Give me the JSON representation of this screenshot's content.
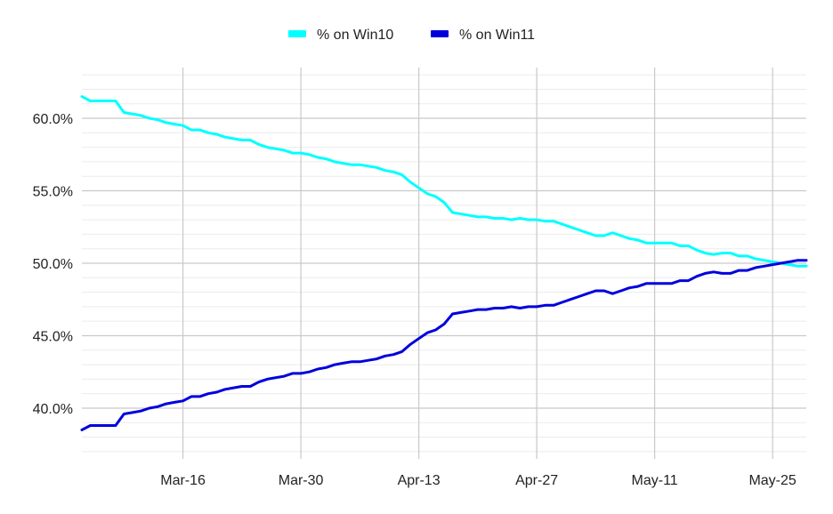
{
  "chart_data": {
    "type": "line",
    "title": "",
    "xlabel": "",
    "ylabel": "",
    "ylim": [
      36.5,
      63.5
    ],
    "yticks": [
      40,
      45,
      50,
      55,
      60
    ],
    "ytick_labels": [
      "40.0%",
      "45.0%",
      "50.0%",
      "55.0%",
      "60.0%"
    ],
    "xlim": [
      "2025-03-04",
      "2025-05-29"
    ],
    "xticks": [
      "2025-03-16",
      "2025-03-30",
      "2025-04-13",
      "2025-04-27",
      "2025-05-11",
      "2025-05-25"
    ],
    "xtick_labels": [
      "Mar-16",
      "Mar-30",
      "Apr-13",
      "Apr-27",
      "May-11",
      "May-25"
    ],
    "grid": true,
    "legend_position": "top-center",
    "series": [
      {
        "name": "% on Win10",
        "color": "#00ffff",
        "points": [
          [
            "2025-03-04",
            61.5
          ],
          [
            "2025-03-05",
            61.2
          ],
          [
            "2025-03-06",
            61.2
          ],
          [
            "2025-03-07",
            61.2
          ],
          [
            "2025-03-08",
            61.2
          ],
          [
            "2025-03-09",
            60.4
          ],
          [
            "2025-03-10",
            60.3
          ],
          [
            "2025-03-11",
            60.2
          ],
          [
            "2025-03-12",
            60.0
          ],
          [
            "2025-03-13",
            59.9
          ],
          [
            "2025-03-14",
            59.7
          ],
          [
            "2025-03-15",
            59.6
          ],
          [
            "2025-03-16",
            59.5
          ],
          [
            "2025-03-17",
            59.2
          ],
          [
            "2025-03-18",
            59.2
          ],
          [
            "2025-03-19",
            59.0
          ],
          [
            "2025-03-20",
            58.9
          ],
          [
            "2025-03-21",
            58.7
          ],
          [
            "2025-03-22",
            58.6
          ],
          [
            "2025-03-23",
            58.5
          ],
          [
            "2025-03-24",
            58.5
          ],
          [
            "2025-03-25",
            58.2
          ],
          [
            "2025-03-26",
            58.0
          ],
          [
            "2025-03-27",
            57.9
          ],
          [
            "2025-03-28",
            57.8
          ],
          [
            "2025-03-29",
            57.6
          ],
          [
            "2025-03-30",
            57.6
          ],
          [
            "2025-03-31",
            57.5
          ],
          [
            "2025-04-01",
            57.3
          ],
          [
            "2025-04-02",
            57.2
          ],
          [
            "2025-04-03",
            57.0
          ],
          [
            "2025-04-04",
            56.9
          ],
          [
            "2025-04-05",
            56.8
          ],
          [
            "2025-04-06",
            56.8
          ],
          [
            "2025-04-07",
            56.7
          ],
          [
            "2025-04-08",
            56.6
          ],
          [
            "2025-04-09",
            56.4
          ],
          [
            "2025-04-10",
            56.3
          ],
          [
            "2025-04-11",
            56.1
          ],
          [
            "2025-04-12",
            55.6
          ],
          [
            "2025-04-13",
            55.2
          ],
          [
            "2025-04-14",
            54.8
          ],
          [
            "2025-04-15",
            54.6
          ],
          [
            "2025-04-16",
            54.2
          ],
          [
            "2025-04-17",
            53.5
          ],
          [
            "2025-04-18",
            53.4
          ],
          [
            "2025-04-19",
            53.3
          ],
          [
            "2025-04-20",
            53.2
          ],
          [
            "2025-04-21",
            53.2
          ],
          [
            "2025-04-22",
            53.1
          ],
          [
            "2025-04-23",
            53.1
          ],
          [
            "2025-04-24",
            53.0
          ],
          [
            "2025-04-25",
            53.1
          ],
          [
            "2025-04-26",
            53.0
          ],
          [
            "2025-04-27",
            53.0
          ],
          [
            "2025-04-28",
            52.9
          ],
          [
            "2025-04-29",
            52.9
          ],
          [
            "2025-04-30",
            52.7
          ],
          [
            "2025-05-01",
            52.5
          ],
          [
            "2025-05-02",
            52.3
          ],
          [
            "2025-05-03",
            52.1
          ],
          [
            "2025-05-04",
            51.9
          ],
          [
            "2025-05-05",
            51.9
          ],
          [
            "2025-05-06",
            52.1
          ],
          [
            "2025-05-07",
            51.9
          ],
          [
            "2025-05-08",
            51.7
          ],
          [
            "2025-05-09",
            51.6
          ],
          [
            "2025-05-10",
            51.4
          ],
          [
            "2025-05-11",
            51.4
          ],
          [
            "2025-05-12",
            51.4
          ],
          [
            "2025-05-13",
            51.4
          ],
          [
            "2025-05-14",
            51.2
          ],
          [
            "2025-05-15",
            51.2
          ],
          [
            "2025-05-16",
            50.9
          ],
          [
            "2025-05-17",
            50.7
          ],
          [
            "2025-05-18",
            50.6
          ],
          [
            "2025-05-19",
            50.7
          ],
          [
            "2025-05-20",
            50.7
          ],
          [
            "2025-05-21",
            50.5
          ],
          [
            "2025-05-22",
            50.5
          ],
          [
            "2025-05-23",
            50.3
          ],
          [
            "2025-05-24",
            50.2
          ],
          [
            "2025-05-25",
            50.1
          ],
          [
            "2025-05-26",
            50.0
          ],
          [
            "2025-05-27",
            49.9
          ],
          [
            "2025-05-28",
            49.8
          ],
          [
            "2025-05-29",
            49.8
          ]
        ]
      },
      {
        "name": "% on Win11",
        "color": "#0000dd",
        "points": [
          [
            "2025-03-04",
            38.5
          ],
          [
            "2025-03-05",
            38.8
          ],
          [
            "2025-03-06",
            38.8
          ],
          [
            "2025-03-07",
            38.8
          ],
          [
            "2025-03-08",
            38.8
          ],
          [
            "2025-03-09",
            39.6
          ],
          [
            "2025-03-10",
            39.7
          ],
          [
            "2025-03-11",
            39.8
          ],
          [
            "2025-03-12",
            40.0
          ],
          [
            "2025-03-13",
            40.1
          ],
          [
            "2025-03-14",
            40.3
          ],
          [
            "2025-03-15",
            40.4
          ],
          [
            "2025-03-16",
            40.5
          ],
          [
            "2025-03-17",
            40.8
          ],
          [
            "2025-03-18",
            40.8
          ],
          [
            "2025-03-19",
            41.0
          ],
          [
            "2025-03-20",
            41.1
          ],
          [
            "2025-03-21",
            41.3
          ],
          [
            "2025-03-22",
            41.4
          ],
          [
            "2025-03-23",
            41.5
          ],
          [
            "2025-03-24",
            41.5
          ],
          [
            "2025-03-25",
            41.8
          ],
          [
            "2025-03-26",
            42.0
          ],
          [
            "2025-03-27",
            42.1
          ],
          [
            "2025-03-28",
            42.2
          ],
          [
            "2025-03-29",
            42.4
          ],
          [
            "2025-03-30",
            42.4
          ],
          [
            "2025-03-31",
            42.5
          ],
          [
            "2025-04-01",
            42.7
          ],
          [
            "2025-04-02",
            42.8
          ],
          [
            "2025-04-03",
            43.0
          ],
          [
            "2025-04-04",
            43.1
          ],
          [
            "2025-04-05",
            43.2
          ],
          [
            "2025-04-06",
            43.2
          ],
          [
            "2025-04-07",
            43.3
          ],
          [
            "2025-04-08",
            43.4
          ],
          [
            "2025-04-09",
            43.6
          ],
          [
            "2025-04-10",
            43.7
          ],
          [
            "2025-04-11",
            43.9
          ],
          [
            "2025-04-12",
            44.4
          ],
          [
            "2025-04-13",
            44.8
          ],
          [
            "2025-04-14",
            45.2
          ],
          [
            "2025-04-15",
            45.4
          ],
          [
            "2025-04-16",
            45.8
          ],
          [
            "2025-04-17",
            46.5
          ],
          [
            "2025-04-18",
            46.6
          ],
          [
            "2025-04-19",
            46.7
          ],
          [
            "2025-04-20",
            46.8
          ],
          [
            "2025-04-21",
            46.8
          ],
          [
            "2025-04-22",
            46.9
          ],
          [
            "2025-04-23",
            46.9
          ],
          [
            "2025-04-24",
            47.0
          ],
          [
            "2025-04-25",
            46.9
          ],
          [
            "2025-04-26",
            47.0
          ],
          [
            "2025-04-27",
            47.0
          ],
          [
            "2025-04-28",
            47.1
          ],
          [
            "2025-04-29",
            47.1
          ],
          [
            "2025-04-30",
            47.3
          ],
          [
            "2025-05-01",
            47.5
          ],
          [
            "2025-05-02",
            47.7
          ],
          [
            "2025-05-03",
            47.9
          ],
          [
            "2025-05-04",
            48.1
          ],
          [
            "2025-05-05",
            48.1
          ],
          [
            "2025-05-06",
            47.9
          ],
          [
            "2025-05-07",
            48.1
          ],
          [
            "2025-05-08",
            48.3
          ],
          [
            "2025-05-09",
            48.4
          ],
          [
            "2025-05-10",
            48.6
          ],
          [
            "2025-05-11",
            48.6
          ],
          [
            "2025-05-12",
            48.6
          ],
          [
            "2025-05-13",
            48.6
          ],
          [
            "2025-05-14",
            48.8
          ],
          [
            "2025-05-15",
            48.8
          ],
          [
            "2025-05-16",
            49.1
          ],
          [
            "2025-05-17",
            49.3
          ],
          [
            "2025-05-18",
            49.4
          ],
          [
            "2025-05-19",
            49.3
          ],
          [
            "2025-05-20",
            49.3
          ],
          [
            "2025-05-21",
            49.5
          ],
          [
            "2025-05-22",
            49.5
          ],
          [
            "2025-05-23",
            49.7
          ],
          [
            "2025-05-24",
            49.8
          ],
          [
            "2025-05-25",
            49.9
          ],
          [
            "2025-05-26",
            50.0
          ],
          [
            "2025-05-27",
            50.1
          ],
          [
            "2025-05-28",
            50.2
          ],
          [
            "2025-05-29",
            50.2
          ]
        ]
      }
    ]
  }
}
